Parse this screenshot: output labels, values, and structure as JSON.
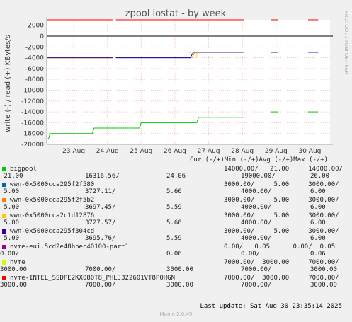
{
  "chart_data": {
    "type": "line",
    "title": "zpool iostat - by week",
    "ylabel": "write (-) / read (+) KBytes/s",
    "side_label": "RRDTOOL / TOBI OETIKER",
    "ylim": [
      -20000,
      3000
    ],
    "yticks": [
      2000,
      0,
      -2000,
      -4000,
      -6000,
      -8000,
      -10000,
      -12000,
      -14000,
      -16000,
      -18000,
      -20000
    ],
    "xlim": [
      0,
      8.4
    ],
    "xticks": [
      {
        "x": 0.8,
        "label": "23 Aug"
      },
      {
        "x": 1.8,
        "label": "24 Aug"
      },
      {
        "x": 2.8,
        "label": "25 Aug"
      },
      {
        "x": 3.8,
        "label": "26 Aug"
      },
      {
        "x": 4.8,
        "label": "27 Aug"
      },
      {
        "x": 5.8,
        "label": "28 Aug"
      },
      {
        "x": 6.8,
        "label": "29 Aug"
      },
      {
        "x": 7.8,
        "label": "30 Aug"
      }
    ],
    "grid": true,
    "series": [
      {
        "name": "bigpool",
        "color": "#00cc00",
        "points": [
          [
            0,
            -19000
          ],
          [
            0.05,
            -19000
          ],
          [
            0.1,
            -18000
          ],
          [
            1.35,
            -18000
          ],
          [
            1.4,
            -17000
          ],
          [
            2.05,
            -17000
          ],
          [
            2.1,
            -17000
          ],
          [
            2.75,
            -17000
          ],
          [
            2.8,
            -16000
          ],
          [
            4.45,
            -16000
          ],
          [
            4.5,
            -15000
          ],
          [
            5.85,
            -15000
          ]
        ],
        "extra": [
          [
            [
              6.65,
              -14000
            ],
            [
              6.85,
              -14000
            ]
          ],
          [
            [
              7.75,
              -14000
            ],
            [
              8.05,
              -14000
            ]
          ]
        ]
      },
      {
        "name": "wwn-0x5000cca295f2f580",
        "color": "#0066b3",
        "points": [
          [
            0,
            -4000
          ],
          [
            1.95,
            -4000
          ]
        ],
        "extra": [
          [
            [
              2.05,
              -4000
            ],
            [
              4.25,
              -4000
            ]
          ],
          [
            [
              4.25,
              -4000
            ],
            [
              4.35,
              -3000
            ],
            [
              5.85,
              -3000
            ]
          ],
          [
            [
              6.65,
              -3000
            ],
            [
              6.85,
              -3000
            ]
          ],
          [
            [
              7.75,
              -3000
            ],
            [
              8.05,
              -3000
            ]
          ]
        ]
      },
      {
        "name": "wwn-0x5000cca295f2f5b2",
        "color": "#ff8000",
        "points": [
          [
            0,
            -4000
          ],
          [
            1.95,
            -4000
          ]
        ],
        "extra": [
          [
            [
              4.3,
              -4000
            ],
            [
              4.4,
              -3000
            ]
          ]
        ]
      },
      {
        "name": "wwn-0x5000cca2c1d12876",
        "color": "#ffcc00",
        "points": [
          [
            0,
            -4000
          ],
          [
            1.95,
            -4000
          ]
        ],
        "extra": [
          [
            [
              4.2,
              -3000
            ],
            [
              4.45,
              -3000
            ],
            [
              4.45,
              -4000
            ]
          ]
        ]
      },
      {
        "name": "wwn-0x5000cca295f304cd",
        "color": "#330099",
        "points": [
          [
            0,
            -4000
          ],
          [
            1.95,
            -4000
          ]
        ],
        "extra": [
          [
            [
              2.05,
              -4000
            ],
            [
              4.25,
              -4000
            ],
            [
              4.35,
              -3000
            ],
            [
              5.85,
              -3000
            ]
          ],
          [
            [
              6.65,
              -3000
            ],
            [
              6.85,
              -3000
            ]
          ],
          [
            [
              7.75,
              -3000
            ],
            [
              8.05,
              -3000
            ]
          ]
        ]
      },
      {
        "name": "nvme-eui.5cd2e48bbec40100-part1",
        "color": "#990099",
        "points": [
          [
            0,
            0
          ],
          [
            8.4,
            0
          ]
        ],
        "extra": []
      },
      {
        "name": "nvme",
        "color": "#ccff00",
        "points": [
          [
            0,
            3000
          ],
          [
            1.95,
            3000
          ]
        ],
        "extra": []
      },
      {
        "name": "nvme-INTEL_SSDPE2KX080T8_PHLJ322601VT8P0HGN",
        "color": "#ff0000",
        "points": [
          [
            0,
            3000
          ],
          [
            1.95,
            3000
          ]
        ],
        "extra": [
          [
            [
              2.05,
              3000
            ],
            [
              5.85,
              3000
            ]
          ],
          [
            [
              6.65,
              3000
            ],
            [
              6.85,
              3000
            ]
          ],
          [
            [
              7.75,
              3000
            ],
            [
              8.05,
              3000
            ]
          ],
          [
            [
              0,
              -7000
            ],
            [
              1.95,
              -7000
            ]
          ],
          [
            [
              2.05,
              -7000
            ],
            [
              5.85,
              -7000
            ]
          ],
          [
            [
              6.65,
              -7000
            ],
            [
              6.85,
              -7000
            ]
          ],
          [
            [
              7.75,
              -7000
            ],
            [
              8.05,
              -7000
            ]
          ]
        ]
      }
    ]
  },
  "legend": {
    "header": "Cur (-/+)Min (-/+)Avg (-/+)Max (-/+)",
    "rows": [
      {
        "name": "bigpool",
        "color": "#00cc00",
        "line1": "14000.00/   21.00     14000.00/",
        "line2a": " 21.00",
        "line2b": "16316.56/",
        "line2c": "24.06",
        "line2d": "19000.00/",
        "line2e": "26.00"
      },
      {
        "name": "wwn-0x5000cca295f2f580",
        "color": "#0066b3",
        "line1": "3000.00/     5.00     3000.00/",
        "line2a": " 5.00",
        "line2b": "3727.11/",
        "line2c": "5.66",
        "line2d": "4000.00/",
        "line2e": "6.00"
      },
      {
        "name": "wwn-0x5000cca295f2f5b2",
        "color": "#ff8000",
        "line1": "3000.00/     5.00     3000.00/",
        "line2a": " 5.00",
        "line2b": "3697.45/",
        "line2c": "5.59",
        "line2d": "4000.00/",
        "line2e": "6.00"
      },
      {
        "name": "wwn-0x5000cca2c1d12876",
        "color": "#ffcc00",
        "line1": "3000.00/     5.00     3000.00/",
        "line2a": " 5.00",
        "line2b": "3727.57/",
        "line2c": "5.66",
        "line2d": "4000.00/",
        "line2e": "6.00"
      },
      {
        "name": "wwn-0x5000cca295f304cd",
        "color": "#330099",
        "line1": "3000.00/     5.00     3000.00/",
        "line2a": " 5.00",
        "line2b": "3695.76/",
        "line2c": "5.59",
        "line2d": "4000.00/",
        "line2e": "6.00"
      },
      {
        "name": "nvme-eui.5cd2e48bbec40100-part1",
        "color": "#990099",
        "line1": "0.00/   0.05      0.00/  0.05",
        "line2a": "0.00/",
        "line2b": "",
        "line2c": "0.06",
        "line2d": "0.00/",
        "line2e": "0.06"
      },
      {
        "name": "nvme",
        "color": "#ccff00",
        "line1": "7000.00/  3000.00     7000.00/",
        "line2a": "3000.00",
        "line2b": "7000.00/",
        "line2c": "3000.00",
        "line2d": "7000.00/",
        "line2e": "3000.00"
      },
      {
        "name": "nvme-INTEL_SSDPE2KX080T8_PHLJ322601VT8P0HGN",
        "color": "#ff0000",
        "line1": "7000.00/  3000.00     7000.00/",
        "line2a": "3000.00",
        "line2b": "7000.00/",
        "line2c": "3000.00",
        "line2d": "7000.00/",
        "line2e": "3000.00"
      }
    ]
  },
  "footer": {
    "last_update": "Last update: Sat Aug 30 23:35:14 2025",
    "munin": "Munin 2.0.49"
  }
}
